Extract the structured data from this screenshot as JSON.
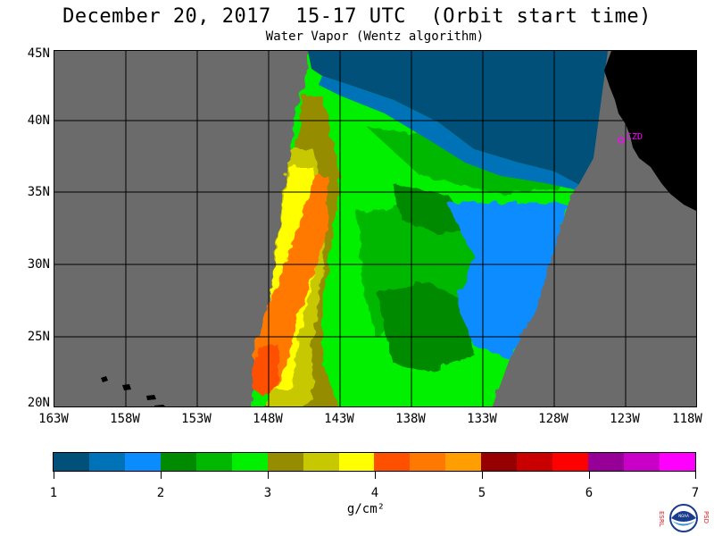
{
  "title": "December 20, 2017  15-17 UTC  (Orbit start time)",
  "subtitle": "Water Vapor (Wentz algorithm)",
  "map": {
    "lat_labels": [
      "45N",
      "40N",
      "35N",
      "30N",
      "25N",
      "20N"
    ],
    "lon_labels": [
      "163W",
      "158W",
      "153W",
      "148W",
      "143W",
      "138W",
      "133W",
      "128W",
      "123W",
      "118W"
    ],
    "station_label": "CZD",
    "colors": {
      "land": "#000000",
      "no_data": "#6b6b6b",
      "station": "#ff00ff",
      "grid": "#000000"
    }
  },
  "colorbar": {
    "colors": [
      "#00507a",
      "#0073b8",
      "#0a8cff",
      "#008a00",
      "#00b800",
      "#00f000",
      "#968c00",
      "#c8c800",
      "#ffff00",
      "#ff5000",
      "#ff7800",
      "#ff9e00",
      "#960000",
      "#c80000",
      "#ff0000",
      "#960096",
      "#c800c8",
      "#ff00ff"
    ],
    "tick_labels": [
      "1",
      "2",
      "3",
      "4",
      "5",
      "6",
      "7"
    ],
    "units": "g/cm²",
    "range": [
      1,
      7
    ]
  },
  "logo": {
    "left_letters": "ESRL",
    "right_letters": "PSD",
    "center": "NOAA"
  }
}
